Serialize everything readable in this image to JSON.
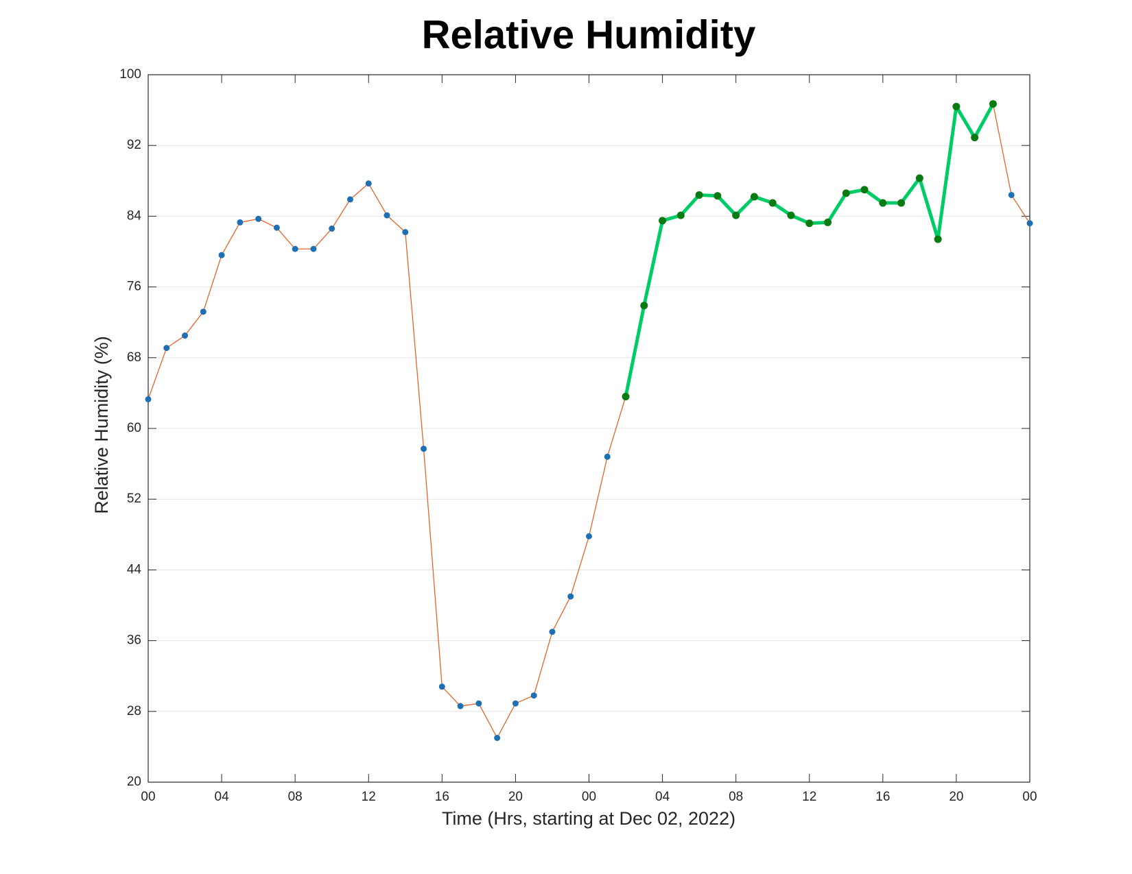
{
  "chart_data": {
    "type": "line",
    "title": "Relative Humidity",
    "xlabel": "Time (Hrs, starting at Dec 02, 2022)",
    "ylabel": "Relative Humidity (%)",
    "x": [
      0,
      1,
      2,
      3,
      4,
      5,
      6,
      7,
      8,
      9,
      10,
      11,
      12,
      13,
      14,
      15,
      16,
      17,
      18,
      19,
      20,
      21,
      22,
      23,
      24,
      25,
      26,
      27,
      28,
      29,
      30,
      31,
      32,
      33,
      34,
      35,
      36,
      37,
      38,
      39,
      40,
      41,
      42,
      43,
      44,
      45,
      46,
      47,
      48
    ],
    "series": [
      {
        "color": "#e4632a",
        "marker_color": "#1f6fb4",
        "values": [
          63.3,
          69.1,
          70.5,
          73.2,
          79.6,
          83.3,
          83.7,
          82.7,
          80.3,
          80.3,
          82.6,
          85.9,
          87.7,
          84.1,
          82.2,
          57.7,
          30.8,
          28.6,
          28.9,
          25.0,
          28.9,
          29.8,
          37.0,
          41.0,
          47.8,
          56.8,
          63.6,
          73.9,
          83.5,
          84.1,
          86.4,
          86.3,
          84.1,
          86.2,
          85.5,
          84.1,
          83.2,
          83.3,
          86.6,
          87.0,
          85.5,
          85.5,
          88.3,
          81.4,
          96.4,
          92.9,
          96.7,
          86.4,
          83.2
        ]
      },
      {
        "color": "#00cc66",
        "marker_color": "#0a7a12",
        "values": [
          null,
          null,
          null,
          null,
          null,
          null,
          null,
          null,
          null,
          null,
          null,
          null,
          null,
          null,
          null,
          null,
          null,
          null,
          null,
          null,
          null,
          null,
          null,
          null,
          null,
          null,
          63.6,
          73.9,
          83.5,
          84.1,
          86.4,
          86.3,
          84.1,
          86.2,
          85.5,
          84.1,
          83.2,
          83.3,
          86.6,
          87.0,
          85.5,
          85.5,
          88.3,
          81.4,
          96.4,
          92.9,
          96.7,
          null,
          null
        ]
      }
    ],
    "xlim": [
      0,
      48
    ],
    "xticks": [
      {
        "value": 0,
        "label": "00"
      },
      {
        "value": 4,
        "label": "04"
      },
      {
        "value": 8,
        "label": "08"
      },
      {
        "value": 12,
        "label": "12"
      },
      {
        "value": 16,
        "label": "16"
      },
      {
        "value": 20,
        "label": "20"
      },
      {
        "value": 24,
        "label": "00"
      },
      {
        "value": 28,
        "label": "04"
      },
      {
        "value": 32,
        "label": "08"
      },
      {
        "value": 36,
        "label": "12"
      },
      {
        "value": 40,
        "label": "16"
      },
      {
        "value": 44,
        "label": "20"
      },
      {
        "value": 48,
        "label": "00"
      }
    ],
    "ylim": [
      20,
      100
    ],
    "yticks": [
      20,
      28,
      36,
      44,
      52,
      60,
      68,
      76,
      84,
      92,
      100
    ],
    "grid": "y"
  }
}
